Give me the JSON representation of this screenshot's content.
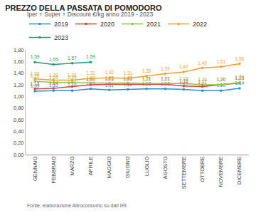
{
  "chart_data": {
    "type": "line",
    "title": "PREZZO DELLA PASSATA DI POMODORO",
    "subtitle": "Iper + Super + Discount €/kg anno 2019 - 2023",
    "source": "Fonte: elaborazione Altroconsumo su dati IRI.",
    "categories": [
      "GENNAIO",
      "FEBBRAIO",
      "MARZO",
      "APRILE",
      "MAGGIO",
      "GIUGNO",
      "LUGLIO",
      "AGOSTO",
      "SETTEMBRE",
      "OTTOBRE",
      "NOVEMBRE",
      "DICEMBRE"
    ],
    "series": [
      {
        "name": "2019",
        "color": "#2a8fc9",
        "values": [
          1.09,
          1.1,
          1.1,
          1.13,
          1.11,
          1.12,
          1.13,
          1.13,
          1.12,
          1.1,
          1.1,
          1.14
        ],
        "value_labels": [
          "1,09",
          "1,10",
          "1,10",
          "1,13",
          "1,11",
          "1,12",
          "1,13",
          "1,13",
          "1,12",
          "1,10",
          "1,10",
          "1,14"
        ]
      },
      {
        "name": "2020",
        "color": "#e0403a",
        "values": [
          1.13,
          1.14,
          1.17,
          1.2,
          1.21,
          1.21,
          1.21,
          1.21,
          1.18,
          1.17,
          1.2,
          1.23
        ],
        "value_labels": [
          "1,13",
          "1,14",
          "1,17",
          "1,20",
          "1,21",
          "1,21",
          "1,21",
          "1,21",
          "1,18",
          "1,17",
          "1,20",
          "1,23"
        ]
      },
      {
        "name": "2021",
        "color": "#8cc63f",
        "values": [
          1.26,
          1.24,
          1.24,
          1.23,
          1.23,
          1.23,
          1.22,
          1.22,
          1.22,
          1.2,
          1.2,
          1.24
        ],
        "value_labels": [
          "1,26",
          "1,24",
          "1,24",
          "1,23",
          "1,23",
          "1,23",
          "1,22",
          "1,22",
          "1,22",
          "1,20",
          "1,20",
          "1,24"
        ]
      },
      {
        "name": "2022",
        "color": "#f5a030",
        "values": [
          1.3,
          1.28,
          1.28,
          1.31,
          1.32,
          1.31,
          1.35,
          1.39,
          1.42,
          1.49,
          1.51,
          1.56
        ],
        "value_labels": [
          "1,30",
          "1,28",
          "1,28",
          "1,31",
          "1,32",
          "1,31",
          "1,35",
          "1,39",
          "1,42",
          "1,49",
          "1,51",
          "1,56"
        ]
      },
      {
        "name": "2023",
        "color": "#1e9e6e",
        "values": [
          1.59,
          1.55,
          1.57,
          1.59,
          null,
          null,
          null,
          null,
          null,
          null,
          null,
          null
        ],
        "value_labels": [
          "1,59",
          "1,55",
          "1,57",
          "1,59",
          null,
          null,
          null,
          null,
          null,
          null,
          null,
          null
        ]
      }
    ],
    "ylim": [
      0,
      1.8
    ],
    "yticks": [
      {
        "value": 0,
        "label": "0,00"
      },
      {
        "value": 0.2,
        "label": "0,20"
      },
      {
        "value": 0.4,
        "label": "0,40"
      },
      {
        "value": 0.6,
        "label": "0,60"
      },
      {
        "value": 0.8,
        "label": "0,80"
      },
      {
        "value": 1.0,
        "label": "1,00"
      },
      {
        "value": 1.2,
        "label": "1,20"
      },
      {
        "value": 1.4,
        "label": "1,40"
      },
      {
        "value": 1.6,
        "label": "1,60"
      },
      {
        "value": 1.8,
        "label": "1,80"
      }
    ],
    "grid": false,
    "legend": "top",
    "data_labels": true,
    "marker": "circle"
  }
}
